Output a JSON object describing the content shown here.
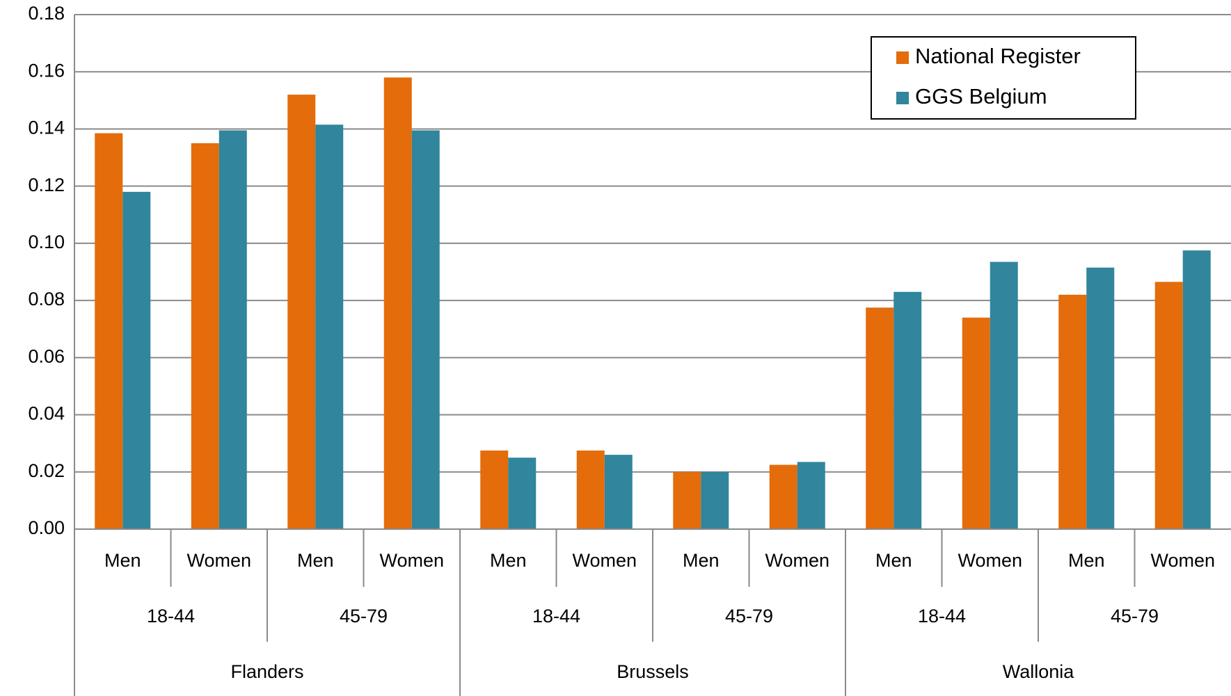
{
  "chart_data": {
    "type": "bar",
    "categories": [
      "Men",
      "Women",
      "Men",
      "Women",
      "Men",
      "Women",
      "Men",
      "Women",
      "Men",
      "Women",
      "Men",
      "Women"
    ],
    "age_groups": [
      "18-44",
      "45-79",
      "18-44",
      "45-79",
      "18-44",
      "45-79"
    ],
    "regions": [
      "Flanders",
      "Brussels",
      "Wallonia"
    ],
    "series": [
      {
        "name": "National Register",
        "color": "#e46c0a",
        "values": [
          0.1385,
          0.135,
          0.152,
          0.158,
          0.0275,
          0.0275,
          0.02,
          0.0225,
          0.0775,
          0.074,
          0.082,
          0.0865
        ]
      },
      {
        "name": "GGS Belgium",
        "color": "#31859c",
        "values": [
          0.118,
          0.1395,
          0.1415,
          0.1395,
          0.025,
          0.026,
          0.02,
          0.0235,
          0.083,
          0.0935,
          0.0915,
          0.0975
        ]
      }
    ],
    "ylim": [
      0,
      0.18
    ],
    "yticks": [
      {
        "value": 0,
        "label": "0.00"
      },
      0.02,
      0.04,
      0.06,
      0.08,
      {
        "value": 0.1,
        "label": "0.10"
      },
      0.12,
      0.14,
      0.16,
      0.18
    ],
    "grid": true,
    "legend": "top-right"
  }
}
